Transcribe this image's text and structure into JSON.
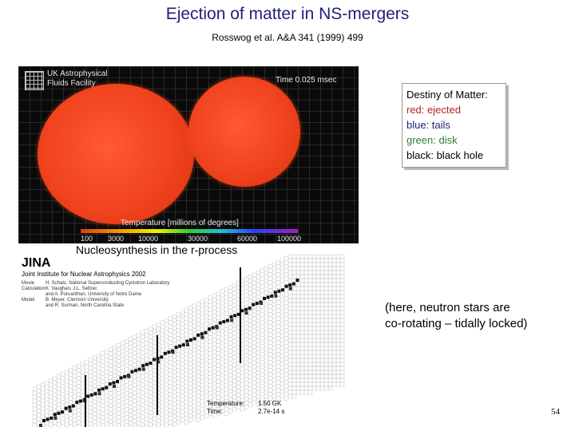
{
  "slide": {
    "title": "Ejection of matter in NS-mergers",
    "reference": "Rosswog et al. A&A 341 (1999) 499",
    "page_number": "54"
  },
  "simulation": {
    "facility_line1": "UK Astrophysical",
    "facility_line2": "Fluids Facility",
    "time_label": "Time 0.025 msec",
    "temperature_title": "Temperature [millions of degrees]",
    "ticks": [
      "100",
      "3000",
      "10000",
      "30000",
      "60000",
      "100000"
    ],
    "star_color": "#f0431e"
  },
  "nucleosynthesis": {
    "title": "Nucleosynthesis in the r-process",
    "org": "JINA",
    "org_full": "Joint Institute for Nuclear Astrophysics 2002",
    "credits": [
      {
        "k": "Movie",
        "v": "H. Schatz, National Superconducting Cyclotron Laboratory"
      },
      {
        "k": "Calculation",
        "v": "K. Vaughan, J.L. Seltzer,"
      },
      {
        "k": "",
        "v": "and A. Puruanthan, University of Notre Dame"
      },
      {
        "k": "Model",
        "v": "B. Meyer, Clemson University"
      },
      {
        "k": "",
        "v": "and R. Surman, North Carolina State"
      }
    ],
    "temperature_label": "Temperature:",
    "temperature_value": "1.50 GK",
    "time_label": "Time:",
    "time_value": "2.7e-14 s"
  },
  "legend": {
    "heading": "Destiny of Matter:",
    "red": "red: ejected",
    "blue": "blue: tails",
    "green": "green: disk",
    "black": "black: black hole",
    "colors": {
      "red": "#b3261e",
      "blue": "#1f1f7a",
      "green": "#2f7d3a",
      "black": "#000000"
    }
  },
  "note": {
    "line1": "(here, neutron stars are",
    "line2": "co-rotating – tidally locked)"
  }
}
